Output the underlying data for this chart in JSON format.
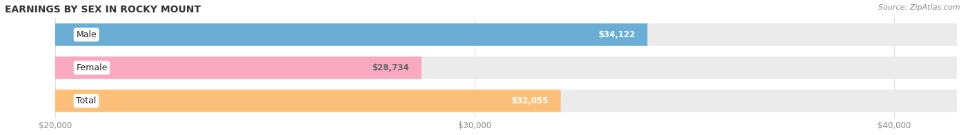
{
  "title": "EARNINGS BY SEX IN ROCKY MOUNT",
  "source": "Source: ZipAtlas.com",
  "categories": [
    "Male",
    "Female",
    "Total"
  ],
  "values": [
    34122,
    28734,
    32055
  ],
  "bar_colors": [
    "#6aaed6",
    "#f9a8c0",
    "#fdc07a"
  ],
  "bar_bg_color": "#ebebeb",
  "label_bg_color": "#ffffff",
  "label_border_colors": [
    "#6aaed6",
    "#f9a8c0",
    "#fdc07a"
  ],
  "value_labels": [
    "$34,122",
    "$28,734",
    "$32,055"
  ],
  "value_label_colors": [
    "#ffffff",
    "#666666",
    "#ffffff"
  ],
  "x_min": 20000,
  "x_max": 40000,
  "x_axis_max": 41500,
  "x_ticks": [
    20000,
    30000,
    40000
  ],
  "x_tick_labels": [
    "$20,000",
    "$30,000",
    "$40,000"
  ],
  "title_fontsize": 10,
  "source_fontsize": 8,
  "bar_label_fontsize": 9,
  "value_fontsize": 8.5,
  "tick_fontsize": 8.5,
  "figsize": [
    14.06,
    1.96
  ],
  "dpi": 100
}
